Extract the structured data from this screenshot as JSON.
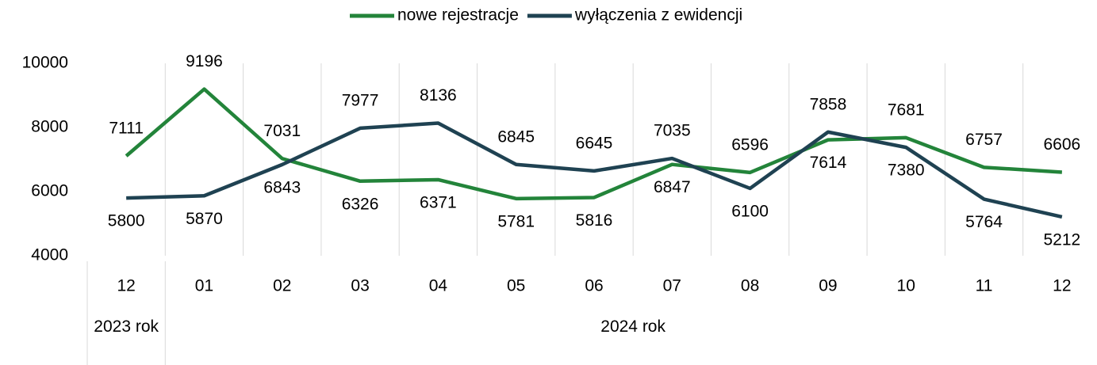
{
  "chart_data": {
    "type": "line",
    "groups": [
      {
        "label": "2023 rok",
        "categories": [
          "12"
        ]
      },
      {
        "label": "2024 rok",
        "categories": [
          "01",
          "02",
          "03",
          "04",
          "05",
          "06",
          "07",
          "08",
          "09",
          "10",
          "11",
          "12"
        ]
      }
    ],
    "series": [
      {
        "name": "nowe rejestracje",
        "color": "#23843a",
        "values": [
          7111,
          9196,
          7031,
          6326,
          6371,
          5781,
          5816,
          6847,
          6596,
          7614,
          7681,
          6757,
          6606
        ]
      },
      {
        "name": "wyłączenia z ewidencji",
        "color": "#1f4252",
        "values": [
          5800,
          5870,
          6843,
          7977,
          8136,
          6845,
          6645,
          7035,
          6100,
          7858,
          7380,
          5764,
          5212
        ]
      }
    ],
    "ylim": [
      4000,
      10000
    ],
    "yticks": [
      4000,
      6000,
      8000,
      10000
    ],
    "legend": "top"
  }
}
